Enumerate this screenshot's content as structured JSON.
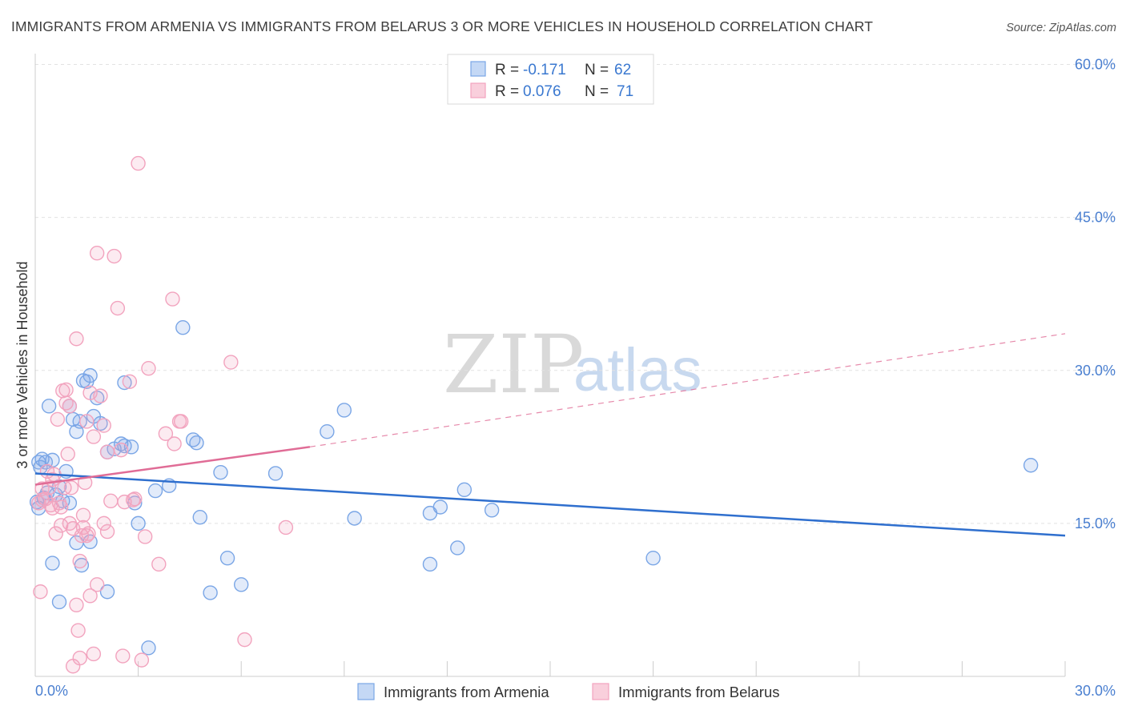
{
  "chart_data": {
    "type": "scatter",
    "title": "IMMIGRANTS FROM ARMENIA VS IMMIGRANTS FROM BELARUS 3 OR MORE VEHICLES IN HOUSEHOLD CORRELATION CHART",
    "source": "Source: ZipAtlas.com",
    "xlabel": "",
    "ylabel": "3 or more Vehicles in Household",
    "xlim": [
      0,
      30
    ],
    "ylim": [
      0,
      60
    ],
    "x_tick_labels": [
      "0.0%",
      "30.0%"
    ],
    "y_tick_labels": [
      "15.0%",
      "30.0%",
      "45.0%",
      "60.0%"
    ],
    "y_ticks": [
      15,
      30,
      45,
      60
    ],
    "grid": true,
    "legend": {
      "position": "top-center",
      "rows": [
        {
          "r_label": "R =",
          "r_value": "-0.171",
          "n_label": "N =",
          "n_value": "62"
        },
        {
          "r_label": "R =",
          "r_value": "0.076",
          "n_label": "N =",
          "n_value": "71"
        }
      ]
    },
    "watermark": {
      "zip": "ZIP",
      "atlas": "atlas"
    },
    "series": [
      {
        "name": "Immigrants from Armenia",
        "color": "#7aa6e6",
        "line_color": "#2f6fce",
        "trend": {
          "x0": 0,
          "y0": 19.9,
          "x1": 30,
          "y1": 13.8
        },
        "points": [
          [
            0.1,
            21.0
          ],
          [
            0.2,
            21.3
          ],
          [
            0.3,
            21.0
          ],
          [
            0.4,
            26.5
          ],
          [
            0.5,
            21.2
          ],
          [
            0.6,
            17.8
          ],
          [
            0.7,
            18.6
          ],
          [
            0.8,
            17.2
          ],
          [
            0.9,
            20.1
          ],
          [
            1.0,
            17.0
          ],
          [
            1.1,
            25.2
          ],
          [
            1.2,
            24.0
          ],
          [
            1.3,
            25.0
          ],
          [
            1.4,
            29.0
          ],
          [
            1.5,
            28.9
          ],
          [
            1.6,
            29.5
          ],
          [
            1.7,
            25.5
          ],
          [
            1.8,
            27.3
          ],
          [
            1.9,
            24.8
          ],
          [
            2.1,
            22.0
          ],
          [
            2.3,
            22.3
          ],
          [
            2.5,
            22.8
          ],
          [
            2.6,
            28.8
          ],
          [
            2.9,
            17.0
          ],
          [
            3.0,
            15.0
          ],
          [
            3.5,
            18.2
          ],
          [
            3.9,
            18.7
          ],
          [
            4.3,
            34.2
          ],
          [
            4.6,
            23.2
          ],
          [
            4.7,
            22.9
          ],
          [
            4.8,
            15.6
          ],
          [
            5.4,
            20.0
          ],
          [
            5.6,
            11.6
          ],
          [
            6.0,
            9.0
          ],
          [
            7.0,
            19.9
          ],
          [
            8.5,
            24.0
          ],
          [
            9.0,
            26.1
          ],
          [
            9.3,
            15.5
          ],
          [
            11.5,
            16.0
          ],
          [
            11.8,
            16.6
          ],
          [
            12.3,
            12.6
          ],
          [
            12.5,
            18.3
          ],
          [
            13.3,
            16.3
          ],
          [
            18.0,
            11.6
          ],
          [
            29.0,
            20.7
          ],
          [
            0.1,
            16.5
          ],
          [
            0.25,
            17.5
          ],
          [
            0.5,
            11.1
          ],
          [
            0.7,
            7.3
          ],
          [
            1.2,
            13.1
          ],
          [
            1.35,
            10.9
          ],
          [
            1.6,
            13.2
          ],
          [
            2.1,
            8.3
          ],
          [
            2.6,
            22.6
          ],
          [
            3.3,
            2.8
          ],
          [
            5.1,
            8.2
          ],
          [
            11.5,
            11.0
          ],
          [
            0.15,
            20.5
          ],
          [
            0.35,
            18.0
          ],
          [
            1.0,
            26.5
          ],
          [
            2.8,
            22.5
          ],
          [
            0.05,
            17.1
          ]
        ]
      },
      {
        "name": "Immigrants from Belarus",
        "color": "#f2a3be",
        "line_color": "#e06c96",
        "trend": {
          "x0": 0,
          "y0": 18.8,
          "x1": 8,
          "y1": 22.5
        },
        "trend_dashed": {
          "x0": 8,
          "y0": 22.5,
          "x1": 30,
          "y1": 33.6
        },
        "points": [
          [
            0.1,
            17.0
          ],
          [
            0.15,
            8.3
          ],
          [
            0.2,
            17.3
          ],
          [
            0.3,
            17.4
          ],
          [
            0.4,
            18.5
          ],
          [
            0.5,
            16.5
          ],
          [
            0.55,
            19.8
          ],
          [
            0.6,
            14.0
          ],
          [
            0.7,
            17.0
          ],
          [
            0.75,
            14.8
          ],
          [
            0.8,
            28.0
          ],
          [
            0.9,
            26.8
          ],
          [
            0.95,
            21.8
          ],
          [
            1.0,
            26.5
          ],
          [
            1.1,
            14.5
          ],
          [
            1.2,
            7.0
          ],
          [
            1.25,
            4.5
          ],
          [
            1.3,
            11.3
          ],
          [
            1.35,
            13.8
          ],
          [
            1.4,
            15.8
          ],
          [
            1.5,
            25.0
          ],
          [
            1.55,
            14.0
          ],
          [
            1.6,
            27.8
          ],
          [
            1.7,
            23.5
          ],
          [
            1.8,
            9.0
          ],
          [
            1.9,
            27.5
          ],
          [
            2.0,
            24.6
          ],
          [
            2.1,
            22.0
          ],
          [
            2.2,
            17.2
          ],
          [
            2.3,
            41.2
          ],
          [
            2.4,
            36.1
          ],
          [
            2.5,
            22.2
          ],
          [
            2.6,
            17.1
          ],
          [
            2.75,
            28.9
          ],
          [
            2.9,
            17.4
          ],
          [
            3.0,
            50.3
          ],
          [
            3.2,
            13.7
          ],
          [
            3.3,
            30.2
          ],
          [
            3.6,
            11.0
          ],
          [
            3.8,
            23.8
          ],
          [
            4.0,
            37.0
          ],
          [
            4.2,
            25.0
          ],
          [
            5.7,
            30.8
          ],
          [
            7.3,
            14.6
          ],
          [
            0.2,
            18.4
          ],
          [
            0.35,
            20.1
          ],
          [
            0.5,
            19.3
          ],
          [
            0.65,
            25.2
          ],
          [
            0.85,
            18.5
          ],
          [
            0.9,
            28.1
          ],
          [
            1.0,
            15.0
          ],
          [
            1.05,
            18.5
          ],
          [
            1.1,
            1.0
          ],
          [
            1.2,
            33.1
          ],
          [
            1.3,
            1.8
          ],
          [
            1.4,
            14.6
          ],
          [
            1.5,
            13.8
          ],
          [
            1.6,
            7.9
          ],
          [
            1.7,
            2.2
          ],
          [
            1.8,
            41.5
          ],
          [
            2.0,
            15.0
          ],
          [
            2.1,
            14.2
          ],
          [
            2.55,
            2.0
          ],
          [
            2.85,
            17.3
          ],
          [
            3.1,
            1.6
          ],
          [
            4.05,
            22.8
          ],
          [
            4.25,
            25.0
          ],
          [
            6.1,
            3.6
          ],
          [
            0.45,
            16.8
          ],
          [
            0.75,
            16.6
          ],
          [
            1.45,
            19.0
          ]
        ]
      }
    ]
  }
}
